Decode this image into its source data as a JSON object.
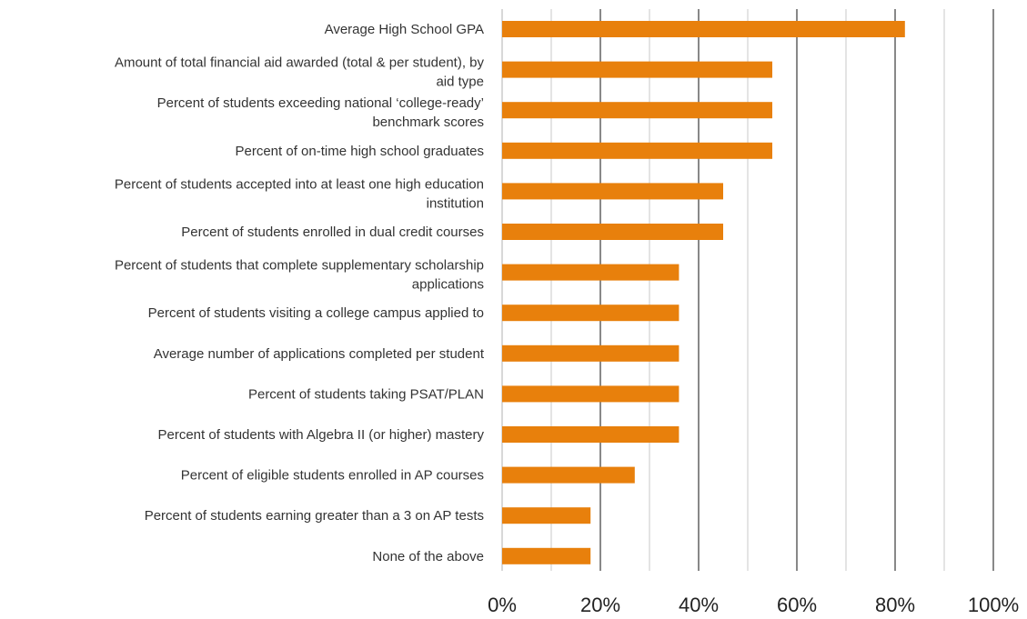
{
  "chart_data": {
    "type": "bar",
    "orientation": "horizontal",
    "categories": [
      [
        "Average High School GPA"
      ],
      [
        "Amount of total financial aid awarded (total & per student), by",
        "aid type"
      ],
      [
        "Percent of students exceeding national ‘college-ready’",
        "benchmark scores"
      ],
      [
        "Percent of on-time high school graduates"
      ],
      [
        "Percent of students accepted into at least one high education",
        "institution"
      ],
      [
        "Percent of students enrolled in dual credit courses"
      ],
      [
        "Percent of students that complete supplementary scholarship",
        "applications"
      ],
      [
        "Percent of students visiting a college campus applied to"
      ],
      [
        "Average number of applications completed per student"
      ],
      [
        "Percent of students taking PSAT/PLAN"
      ],
      [
        "Percent of students with Algebra II (or higher) mastery"
      ],
      [
        "Percent of eligible students enrolled in AP courses"
      ],
      [
        "Percent of students earning greater than a 3 on AP tests"
      ],
      [
        "None of the above"
      ]
    ],
    "values": [
      82,
      55,
      55,
      55,
      45,
      45,
      36,
      36,
      36,
      36,
      36,
      27,
      18,
      18
    ],
    "xlim": [
      0,
      100
    ],
    "x_ticks": [
      0,
      20,
      40,
      60,
      80,
      100
    ],
    "x_tick_labels": [
      "0%",
      "20%",
      "40%",
      "60%",
      "80%",
      "100%"
    ],
    "grid": true,
    "bar_color": "#E8800C",
    "title": "",
    "xlabel": "",
    "ylabel": ""
  }
}
